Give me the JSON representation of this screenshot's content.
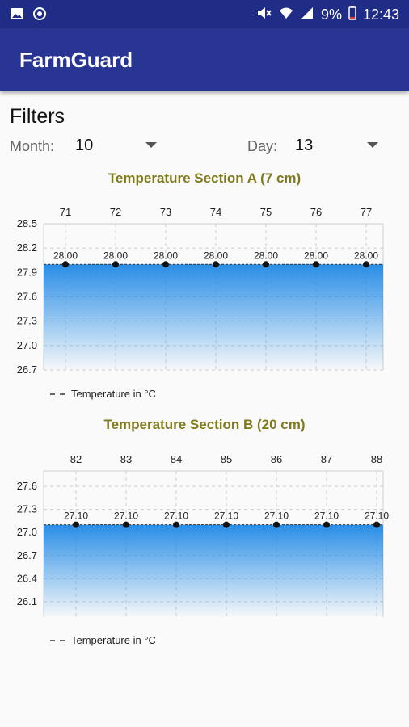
{
  "status_bar": {
    "battery_percent": "9%",
    "time": "12:43",
    "icons": [
      "image-icon",
      "sync-icon",
      "mute-icon",
      "wifi-icon",
      "signal-icon",
      "battery-icon"
    ]
  },
  "app": {
    "title": "FarmGuard",
    "colors": {
      "primary": "#283593",
      "status": "#1f2d86",
      "chart_title": "#7f7a1c",
      "area": "#1e88e5"
    }
  },
  "filters": {
    "title": "Filters",
    "month_label": "Month:",
    "month_value": "10",
    "day_label": "Day:",
    "day_value": "13"
  },
  "chart_data": [
    {
      "type": "area",
      "title": "Temperature Section A (7 cm)",
      "x": [
        "71",
        "72",
        "73",
        "74",
        "75",
        "76",
        "77"
      ],
      "series": [
        {
          "name": "Temperature in °C",
          "values": [
            28.0,
            28.0,
            28.0,
            28.0,
            28.0,
            28.0,
            28.0
          ]
        }
      ],
      "data_labels": [
        "28.00",
        "28.00",
        "28.00",
        "28.00",
        "28.00",
        "28.00",
        "28.00"
      ],
      "yticks": [
        "28.5",
        "28.2",
        "27.9",
        "27.6",
        "27.3",
        "27.0",
        "26.7"
      ],
      "ylim": [
        26.7,
        28.5
      ],
      "grid": true,
      "x_axis_position": "top",
      "legend": "bottom-left"
    },
    {
      "type": "area",
      "title": "Temperature Section B (20 cm)",
      "x": [
        "82",
        "83",
        "84",
        "85",
        "86",
        "87",
        "88"
      ],
      "series": [
        {
          "name": "Temperature in °C",
          "values": [
            27.1,
            27.1,
            27.1,
            27.1,
            27.1,
            27.1,
            27.1
          ]
        }
      ],
      "data_labels": [
        "27.10",
        "27.10",
        "27.10",
        "27.10",
        "27.10",
        "27.10",
        "27.10"
      ],
      "yticks": [
        "27.6",
        "27.3",
        "27.0",
        "26.7",
        "26.4",
        "26.1"
      ],
      "ylim": [
        25.9,
        27.8
      ],
      "grid": true,
      "x_axis_position": "top",
      "legend": "bottom-left"
    }
  ]
}
